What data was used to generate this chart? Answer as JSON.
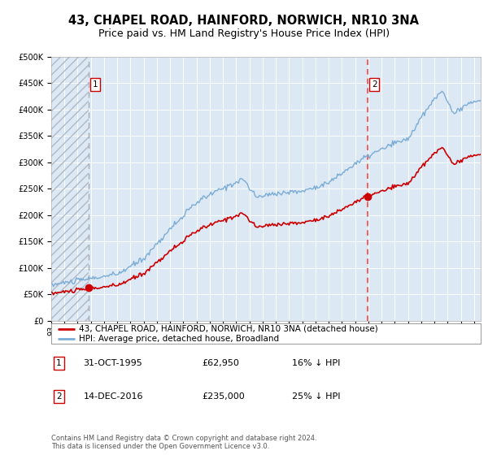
{
  "title": "43, CHAPEL ROAD, HAINFORD, NORWICH, NR10 3NA",
  "subtitle": "Price paid vs. HM Land Registry's House Price Index (HPI)",
  "legend_line1": "43, CHAPEL ROAD, HAINFORD, NORWICH, NR10 3NA (detached house)",
  "legend_line2": "HPI: Average price, detached house, Broadland",
  "purchase1_date": "31-OCT-1995",
  "purchase1_price": "£62,950",
  "purchase1_hpi": "16% ↓ HPI",
  "purchase1_year": 1995.83,
  "purchase1_value": 62950,
  "purchase2_date": "14-DEC-2016",
  "purchase2_price": "£235,000",
  "purchase2_hpi": "25% ↓ HPI",
  "purchase2_year": 2016.95,
  "purchase2_value": 235000,
  "ylim": [
    0,
    500000
  ],
  "yticks": [
    0,
    50000,
    100000,
    150000,
    200000,
    250000,
    300000,
    350000,
    400000,
    450000,
    500000
  ],
  "xmin": 1993.0,
  "xmax": 2025.5,
  "background_color": "#ffffff",
  "plot_bg_color": "#dce9f5",
  "grid_color": "#ffffff",
  "hatch_color": "#b0b8c8",
  "red_line_color": "#cc0000",
  "blue_line_color": "#7aacd6",
  "vline1_color": "#aaaaaa",
  "vline2_color": "#ff4444",
  "marker_color": "#cc0000",
  "footer_text": "Contains HM Land Registry data © Crown copyright and database right 2024.\nThis data is licensed under the Open Government Licence v3.0.",
  "title_fontsize": 10.5,
  "subtitle_fontsize": 9,
  "tick_fontsize": 7,
  "legend_fontsize": 7.5,
  "footer_fontsize": 6
}
